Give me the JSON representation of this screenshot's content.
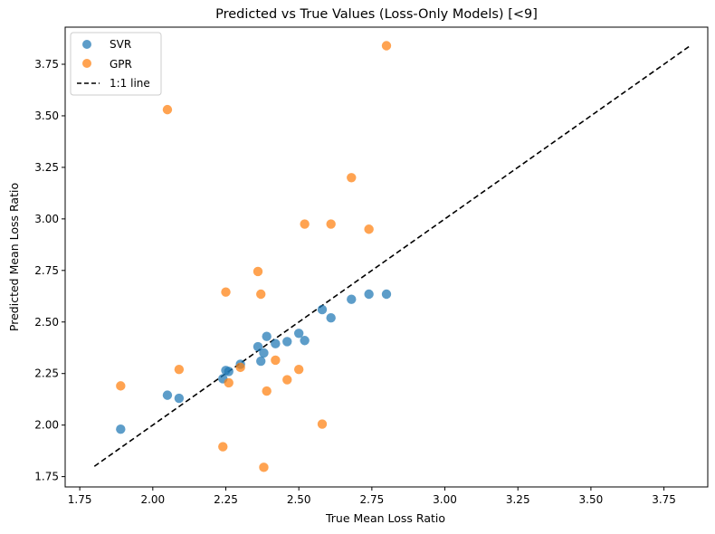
{
  "chart_data": {
    "type": "scatter",
    "title": "Predicted vs True Values (Loss-Only Models) [<9]",
    "xlabel": "True Mean Loss Ratio",
    "ylabel": "Predicted Mean Loss Ratio",
    "xlim": [
      1.7,
      3.9
    ],
    "ylim": [
      1.7,
      3.93
    ],
    "xticks": [
      "1.75",
      "2.00",
      "2.25",
      "2.50",
      "2.75",
      "3.00",
      "3.25",
      "3.50",
      "3.75"
    ],
    "yticks": [
      "1.75",
      "2.00",
      "2.25",
      "2.50",
      "2.75",
      "3.00",
      "3.25",
      "3.50",
      "3.75"
    ],
    "grid": false,
    "legend_position": "top-left",
    "series": [
      {
        "name": "SVR",
        "color": "#1f77b4",
        "points": [
          [
            1.89,
            1.98
          ],
          [
            2.05,
            2.145
          ],
          [
            2.09,
            2.13
          ],
          [
            2.24,
            2.225
          ],
          [
            2.25,
            2.265
          ],
          [
            2.26,
            2.26
          ],
          [
            2.3,
            2.295
          ],
          [
            2.36,
            2.38
          ],
          [
            2.37,
            2.31
          ],
          [
            2.38,
            2.35
          ],
          [
            2.39,
            2.43
          ],
          [
            2.42,
            2.395
          ],
          [
            2.46,
            2.405
          ],
          [
            2.5,
            2.445
          ],
          [
            2.52,
            2.41
          ],
          [
            2.58,
            2.56
          ],
          [
            2.61,
            2.52
          ],
          [
            2.68,
            2.61
          ],
          [
            2.74,
            2.635
          ],
          [
            2.8,
            2.635
          ]
        ]
      },
      {
        "name": "GPR",
        "color": "#ff7f0e",
        "points": [
          [
            1.89,
            2.19
          ],
          [
            2.05,
            3.53
          ],
          [
            2.09,
            2.27
          ],
          [
            2.24,
            1.895
          ],
          [
            2.25,
            2.645
          ],
          [
            2.26,
            2.205
          ],
          [
            2.3,
            2.28
          ],
          [
            2.36,
            2.745
          ],
          [
            2.37,
            2.635
          ],
          [
            2.38,
            1.795
          ],
          [
            2.39,
            2.165
          ],
          [
            2.42,
            2.315
          ],
          [
            2.46,
            2.22
          ],
          [
            2.5,
            2.27
          ],
          [
            2.52,
            2.975
          ],
          [
            2.58,
            2.005
          ],
          [
            2.61,
            2.975
          ],
          [
            2.68,
            3.2
          ],
          [
            2.74,
            2.95
          ],
          [
            2.8,
            3.84
          ]
        ]
      }
    ],
    "reference_line": {
      "name": "1:1 line",
      "color": "#000000",
      "style": "dashed",
      "from": [
        1.8,
        1.8
      ],
      "to": [
        3.84,
        3.84
      ]
    }
  }
}
